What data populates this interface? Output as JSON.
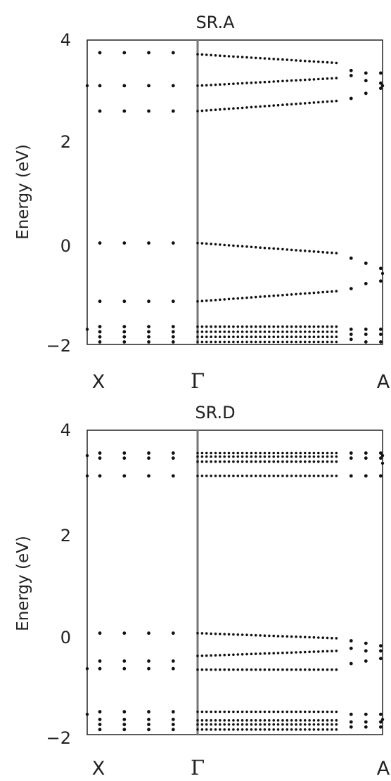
{
  "chart_data": [
    {
      "type": "scatter",
      "title": "SR.A",
      "ylabel": "Energy (eV)",
      "xlabel": "",
      "ylim": [
        -2,
        4
      ],
      "yticks": [
        -2,
        0,
        2,
        4
      ],
      "ytick_labels": [
        "−2",
        "0",
        "2",
        "4"
      ],
      "kpoints": [
        "X",
        "Γ",
        "A"
      ],
      "gamma_line": true,
      "segments": {
        "X_Gamma": {
          "x": [
            0.0,
            0.25,
            0.5,
            0.75
          ],
          "levels": [
            3.75,
            3.1,
            2.6,
            0.0,
            -1.15,
            -1.65,
            -1.75,
            -1.85,
            -1.95
          ]
        },
        "Gamma_A": {
          "dense_points": 32,
          "dense_x_end": 0.75,
          "bands": [
            [
              3.72,
              3.55
            ],
            [
              3.1,
              3.25
            ],
            [
              2.6,
              2.8
            ],
            [
              0.0,
              -0.2
            ],
            [
              -1.15,
              -0.95
            ],
            [
              -1.65,
              -1.65
            ],
            [
              -1.75,
              -1.75
            ],
            [
              -1.85,
              -1.85
            ],
            [
              -1.95,
              -1.95
            ]
          ],
          "sparse_x": [
            0.83,
            0.91,
            0.99
          ],
          "sparse": [
            [
              3.4,
              3.35,
              3.35
            ],
            [
              3.3,
              3.2,
              3.15
            ],
            [
              2.85,
              2.95,
              3.05
            ],
            [
              -0.3,
              -0.4,
              -0.5
            ],
            [
              -0.9,
              -0.8,
              -0.75
            ],
            [
              -1.7,
              -1.7,
              -1.7
            ],
            [
              -1.8,
              -1.8,
              -1.8
            ],
            [
              -1.9,
              -1.95,
              -1.95
            ]
          ],
          "edge_x": 1.0,
          "edge": [
            3.1,
            -0.6
          ]
        },
        "X_edge": [
          3.1,
          -1.7
        ]
      }
    },
    {
      "type": "scatter",
      "title": "SR.D",
      "ylabel": "Energy (eV)",
      "xlabel": "",
      "ylim": [
        -2,
        4
      ],
      "yticks": [
        -2,
        0,
        2,
        4
      ],
      "ytick_labels": [
        "−2",
        "0",
        "2",
        "4"
      ],
      "kpoints": [
        "X",
        "Γ",
        "A"
      ],
      "gamma_line": true,
      "segments": {
        "X_Gamma": {
          "x": [
            0.0,
            0.25,
            0.5,
            0.75
          ],
          "levels": [
            3.55,
            3.45,
            3.1,
            0.0,
            -0.55,
            -0.7,
            -1.55,
            -1.7,
            -1.8,
            -1.9
          ]
        },
        "Gamma_A": {
          "dense_points": 32,
          "dense_x_end": 0.75,
          "bands": [
            [
              3.55,
              3.55
            ],
            [
              3.48,
              3.48
            ],
            [
              3.38,
              3.38
            ],
            [
              3.1,
              3.1
            ],
            [
              0.0,
              -0.1
            ],
            [
              -0.45,
              -0.35
            ],
            [
              -0.72,
              -0.72
            ],
            [
              -1.55,
              -1.55
            ],
            [
              -1.72,
              -1.72
            ],
            [
              -1.8,
              -1.8
            ],
            [
              -1.9,
              -1.9
            ]
          ],
          "sparse_x": [
            0.83,
            0.91,
            0.99
          ],
          "sparse": [
            [
              3.55,
              3.55,
              3.55
            ],
            [
              3.45,
              3.45,
              3.45
            ],
            [
              3.1,
              3.1,
              3.1
            ],
            [
              -0.15,
              -0.2,
              -0.25
            ],
            [
              -0.3,
              -0.35,
              -0.35
            ],
            [
              -0.6,
              -0.55,
              -0.5
            ],
            [
              -1.6,
              -1.6,
              -1.6
            ],
            [
              -1.75,
              -1.75,
              -1.75
            ],
            [
              -1.85,
              -1.85,
              -1.85
            ]
          ],
          "edge_x": 1.0,
          "edge": [
            3.5,
            3.35,
            -1.7
          ]
        },
        "X_edge": [
          3.5,
          3.1,
          -0.7,
          -1.6
        ]
      }
    }
  ]
}
